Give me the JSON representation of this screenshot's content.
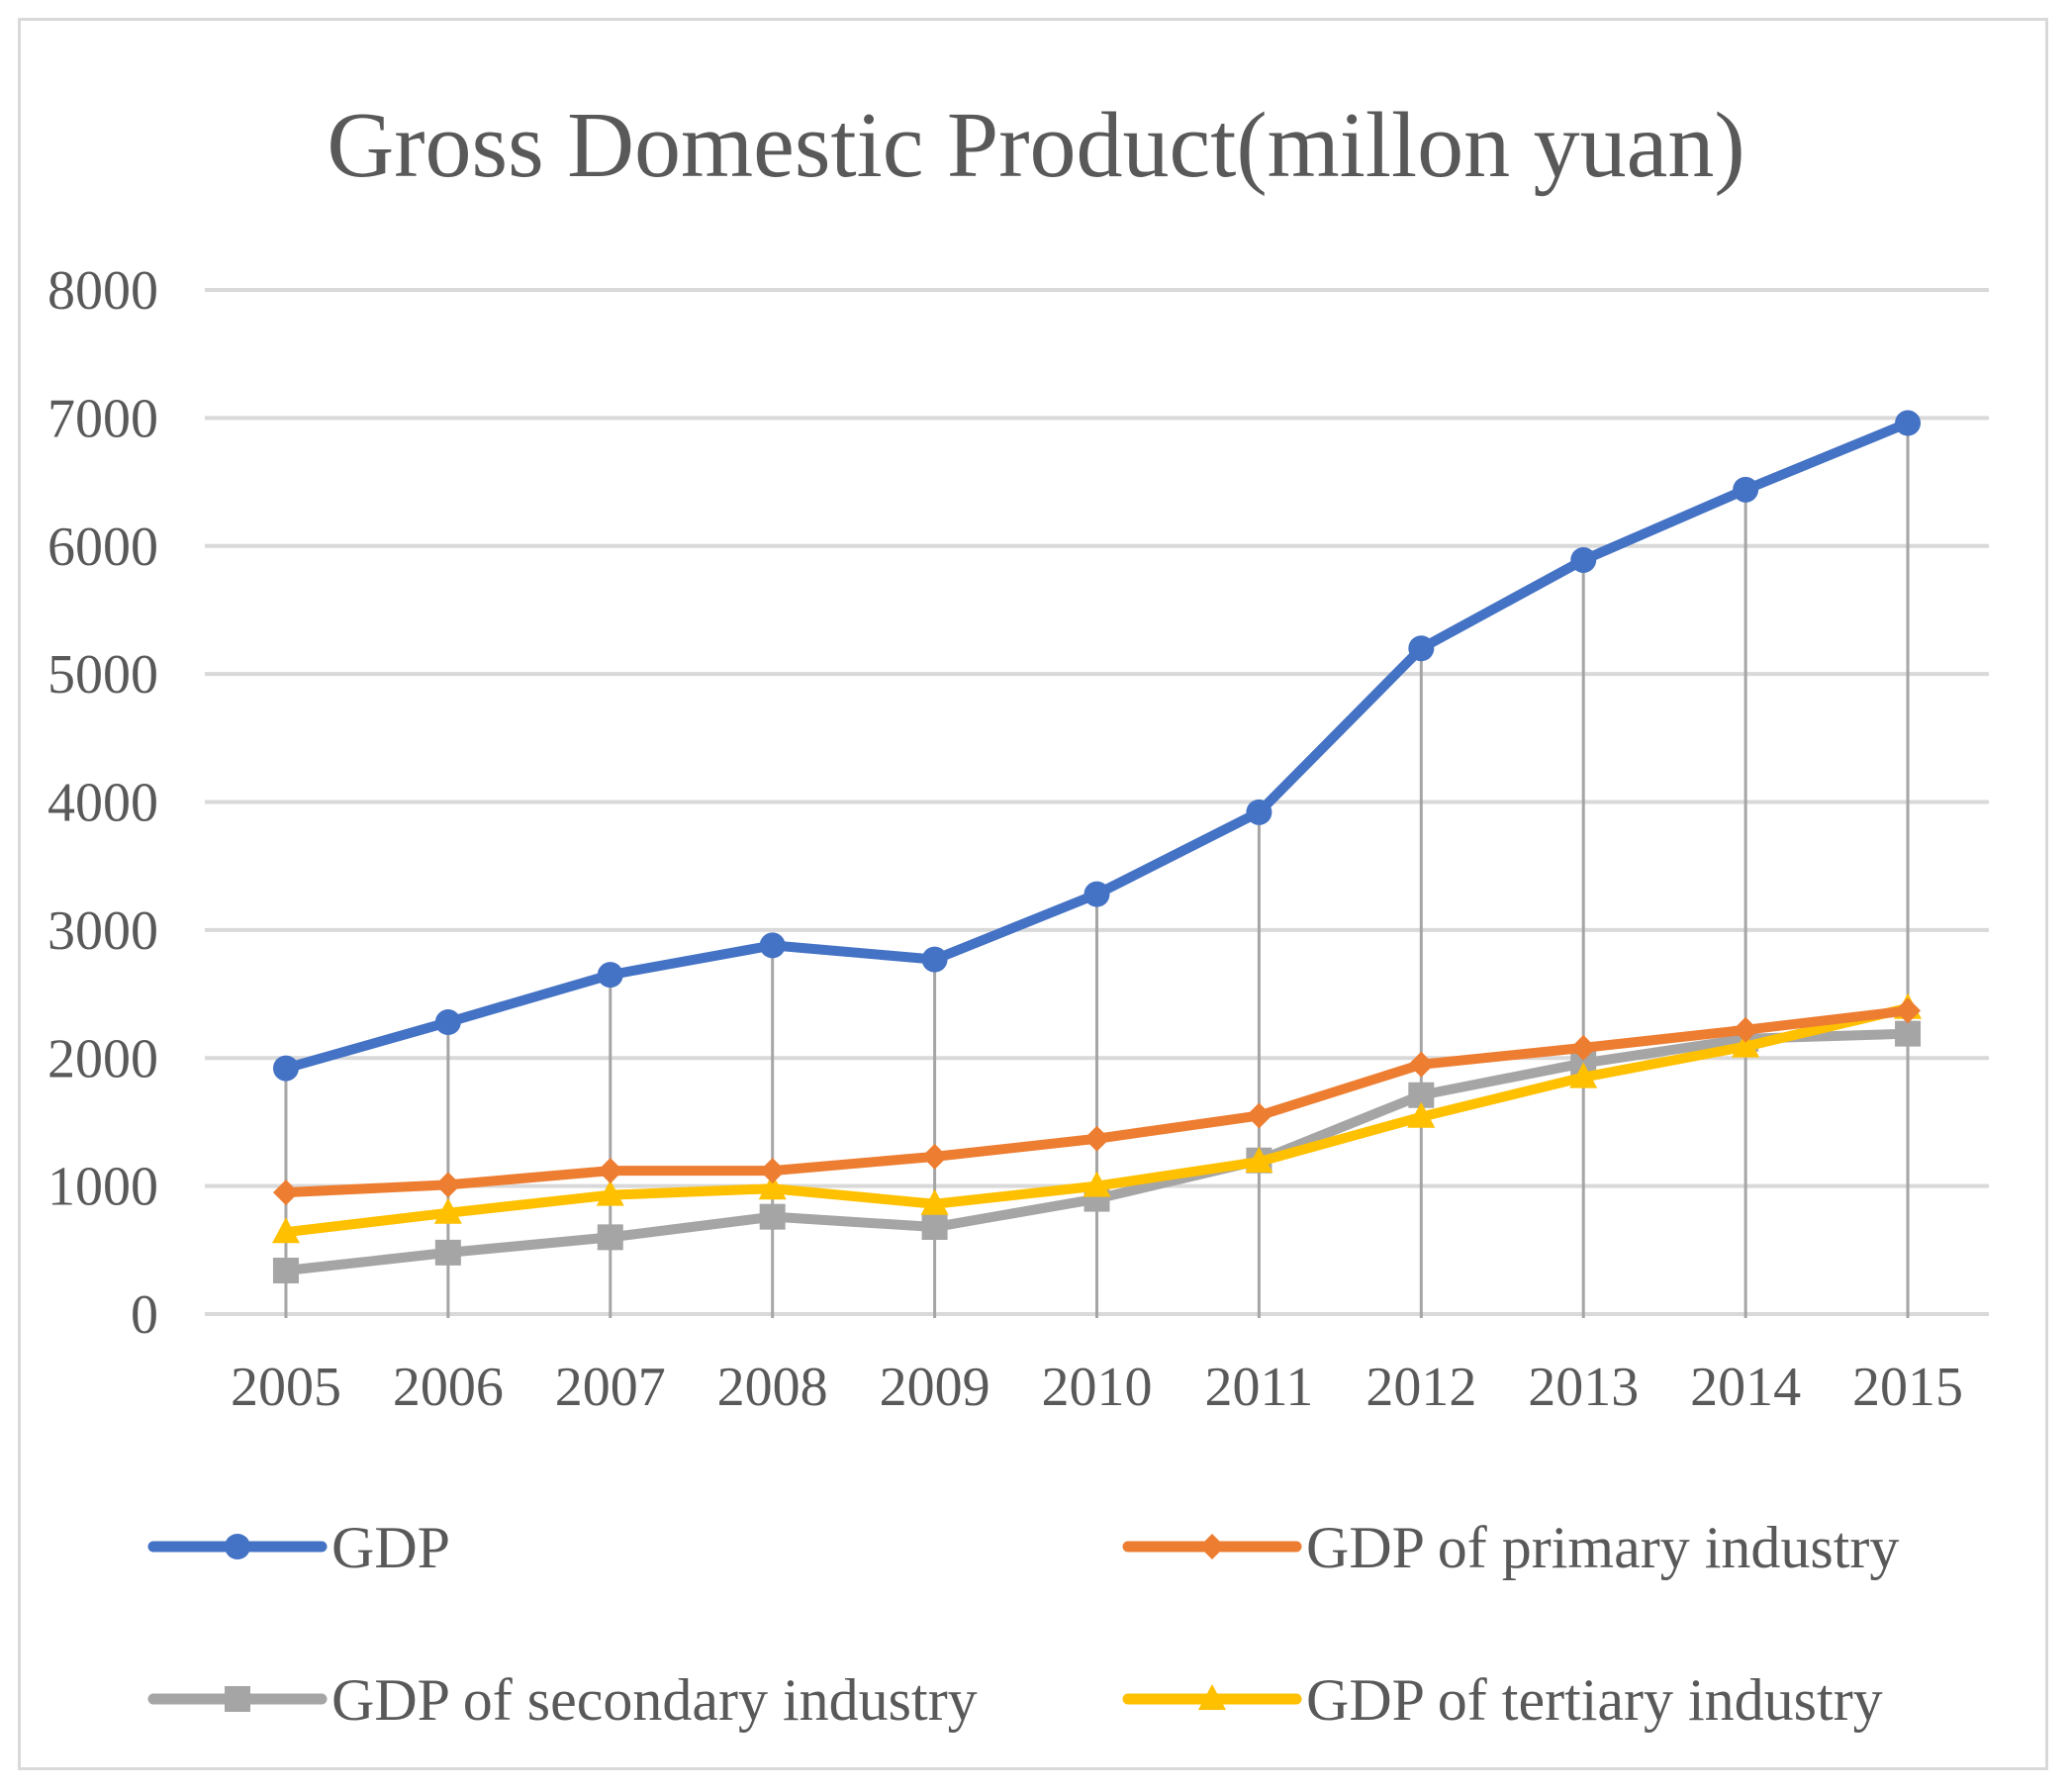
{
  "chart_data": {
    "type": "line",
    "title": "Gross Domestic Product(millon yuan)",
    "xlabel": "",
    "ylabel": "",
    "categories": [
      "2005",
      "2006",
      "2007",
      "2008",
      "2009",
      "2010",
      "2011",
      "2012",
      "2013",
      "2014",
      "2015"
    ],
    "ylim": [
      0,
      8000
    ],
    "yticks": [
      0,
      1000,
      2000,
      3000,
      4000,
      5000,
      6000,
      7000,
      8000
    ],
    "grid": true,
    "drop_lines": true,
    "legend_position": "bottom",
    "series": [
      {
        "name": "GDP",
        "color": "#4472C4",
        "marker": "circle",
        "values": [
          1920,
          2280,
          2650,
          2880,
          2770,
          3280,
          3920,
          5200,
          5890,
          6440,
          6960
        ]
      },
      {
        "name": "GDP of primary industry",
        "color": "#ED7D31",
        "marker": "diamond",
        "values": [
          950,
          1010,
          1120,
          1120,
          1230,
          1370,
          1550,
          1950,
          2080,
          2220,
          2370
        ]
      },
      {
        "name": "GDP of secondary industry",
        "color": "#A5A5A5",
        "marker": "square",
        "values": [
          340,
          480,
          600,
          760,
          680,
          900,
          1200,
          1710,
          1960,
          2150,
          2190
        ]
      },
      {
        "name": "GDP of tertiary industry",
        "color": "#FFC000",
        "marker": "triangle",
        "values": [
          640,
          790,
          930,
          980,
          860,
          1000,
          1190,
          1540,
          1850,
          2090,
          2390
        ]
      }
    ]
  }
}
